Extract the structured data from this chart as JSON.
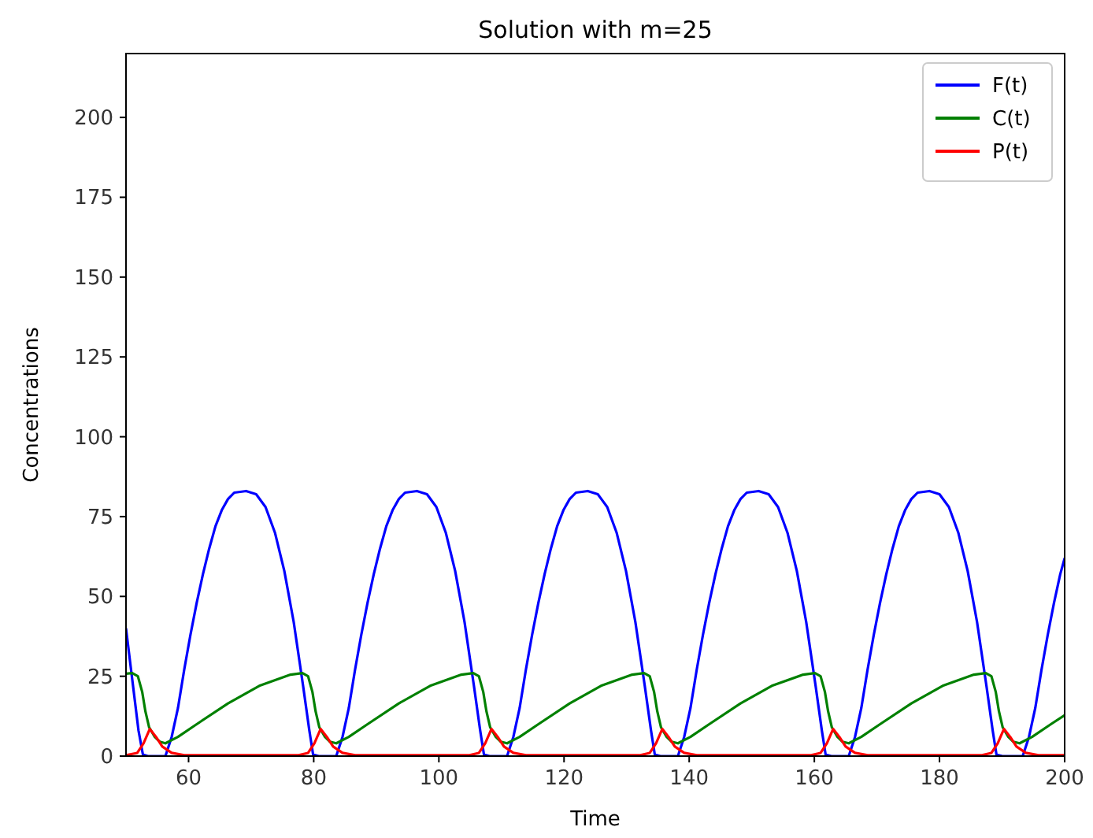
{
  "chart_data": {
    "type": "line",
    "title": "Solution with m=25",
    "xlabel": "Time",
    "ylabel": "Concentrations",
    "xlim": [
      50,
      200
    ],
    "ylim": [
      0,
      220
    ],
    "xticks": [
      60,
      80,
      100,
      120,
      140,
      160,
      180,
      200
    ],
    "yticks": [
      0,
      25,
      50,
      75,
      100,
      125,
      150,
      175,
      200
    ],
    "grid": false,
    "legend": "top right",
    "line_style": "solid",
    "series": [
      {
        "name": "F(t)",
        "color": "#0000ff",
        "x": [
          50,
          51,
          52,
          52.7,
          53.5,
          56.3,
          57.3,
          58.3,
          59.3,
          60.3,
          61.3,
          62.3,
          63.3,
          64.3,
          65.3,
          66.3,
          67.3,
          69.2,
          70.8,
          72.3,
          73.8,
          75.3,
          76.8,
          78.3,
          79.3,
          79.9,
          80.8,
          83.6,
          84.6,
          85.6,
          86.6,
          87.6,
          88.6,
          89.6,
          90.6,
          91.6,
          92.6,
          93.6,
          94.6,
          96.5,
          98.1,
          99.6,
          101.1,
          102.6,
          104.1,
          105.6,
          106.6,
          107.2,
          108.1,
          110.9,
          111.9,
          112.9,
          113.9,
          114.9,
          115.9,
          116.9,
          117.9,
          118.9,
          119.9,
          120.9,
          121.9,
          123.8,
          125.4,
          126.9,
          128.4,
          129.9,
          131.4,
          132.9,
          133.9,
          134.5,
          135.4,
          138.2,
          139.2,
          140.2,
          141.2,
          142.2,
          143.2,
          144.2,
          145.2,
          146.2,
          147.2,
          148.2,
          149.2,
          151.1,
          152.7,
          154.2,
          155.7,
          157.2,
          158.7,
          160.2,
          161.2,
          161.8,
          162.7,
          165.5,
          166.5,
          167.5,
          168.5,
          169.5,
          170.5,
          171.5,
          172.5,
          173.5,
          174.5,
          175.5,
          176.5,
          178.4,
          180,
          181.5,
          183,
          184.5,
          186,
          187.5,
          188.5,
          189.1,
          190,
          193.3,
          194.3,
          195.3,
          196.3,
          197.3,
          198.3,
          199.3,
          200
        ],
        "values": [
          40,
          24,
          8,
          0.5,
          0,
          0,
          6,
          15,
          27,
          38,
          48,
          57,
          65,
          72,
          77,
          80.5,
          82.5,
          83,
          82,
          78,
          70,
          58,
          42,
          22,
          8,
          0.5,
          0,
          0,
          6,
          15,
          27,
          38,
          48,
          57,
          65,
          72,
          77,
          80.5,
          82.5,
          83,
          82,
          78,
          70,
          58,
          42,
          22,
          8,
          0.5,
          0,
          0,
          6,
          15,
          27,
          38,
          48,
          57,
          65,
          72,
          77,
          80.5,
          82.5,
          83,
          82,
          78,
          70,
          58,
          42,
          22,
          8,
          0.5,
          0,
          0,
          6,
          15,
          27,
          38,
          48,
          57,
          65,
          72,
          77,
          80.5,
          82.5,
          83,
          82,
          78,
          70,
          58,
          42,
          22,
          8,
          0.5,
          0,
          0,
          6,
          15,
          27,
          38,
          48,
          57,
          65,
          72,
          77,
          80.5,
          82.5,
          83,
          82,
          78,
          70,
          58,
          42,
          22,
          8,
          0.5,
          0,
          0,
          6,
          15,
          27,
          38,
          48,
          57,
          62
        ]
      },
      {
        "name": "C(t)",
        "color": "#008000",
        "x": [
          50,
          51,
          51.9,
          52.6,
          53.1,
          53.7,
          54.6,
          55.4,
          56.3,
          58.3,
          61.3,
          66.3,
          71.3,
          76.3,
          78.2,
          79.1,
          79.8,
          80.3,
          80.9,
          81.8,
          82.6,
          83.6,
          85.6,
          88.6,
          93.6,
          98.6,
          103.6,
          105.5,
          106.4,
          107.1,
          107.6,
          108.2,
          109.1,
          109.9,
          110.9,
          112.9,
          115.9,
          120.9,
          125.9,
          130.9,
          132.8,
          133.7,
          134.4,
          134.9,
          135.5,
          136.4,
          137.2,
          138.2,
          140.2,
          143.2,
          148.2,
          153.2,
          158.2,
          160.1,
          161,
          161.7,
          162.2,
          162.8,
          163.7,
          164.5,
          165.5,
          167.5,
          170.5,
          175.5,
          180.5,
          185.5,
          187.4,
          188.3,
          189,
          189.5,
          190.1,
          191,
          191.8,
          192.8,
          194.8,
          197.8,
          200
        ],
        "values": [
          25.8,
          26,
          25,
          20,
          14,
          9,
          6,
          4.5,
          4,
          6,
          10,
          16.5,
          22,
          25.5,
          26,
          25,
          20,
          14,
          9,
          6,
          4.5,
          4,
          6,
          10,
          16.5,
          22,
          25.5,
          26,
          25,
          20,
          14,
          9,
          6,
          4.5,
          4,
          6,
          10,
          16.5,
          22,
          25.5,
          26,
          25,
          20,
          14,
          9,
          6,
          4.5,
          4,
          6,
          10,
          16.5,
          22,
          25.5,
          26,
          25,
          20,
          14,
          9,
          6,
          4.5,
          4,
          6,
          10,
          16.5,
          22,
          25.5,
          26,
          25,
          20,
          14,
          9,
          6,
          4.5,
          4,
          6,
          10,
          12.8
        ]
      },
      {
        "name": "P(t)",
        "color": "#ff0000",
        "x": [
          50,
          51.8,
          52.8,
          53.8,
          54.8,
          55.8,
          57.3,
          59.3,
          77.6,
          79.1,
          80.1,
          81.1,
          82.1,
          83.1,
          84.6,
          86.6,
          104.9,
          106.4,
          107.4,
          108.4,
          109.4,
          110.4,
          111.9,
          113.9,
          132.2,
          133.7,
          134.7,
          135.7,
          136.7,
          137.7,
          139.2,
          141.2,
          159.5,
          161,
          162,
          163,
          164,
          165,
          166.5,
          168.5,
          186.8,
          188.3,
          189.3,
          190.3,
          191.3,
          192.3,
          193.8,
          195.8,
          200
        ],
        "values": [
          0.3,
          1,
          4,
          8.5,
          6,
          3,
          1,
          0.3,
          0.3,
          1,
          4,
          8.5,
          6,
          3,
          1,
          0.3,
          0.3,
          1,
          4,
          8.5,
          6,
          3,
          1,
          0.3,
          0.3,
          1,
          4,
          8.5,
          6,
          3,
          1,
          0.3,
          0.3,
          1,
          4,
          8.5,
          6,
          3,
          1,
          0.3,
          0.3,
          1,
          4,
          8.5,
          6,
          3,
          1,
          0.3,
          0.3
        ]
      }
    ]
  }
}
